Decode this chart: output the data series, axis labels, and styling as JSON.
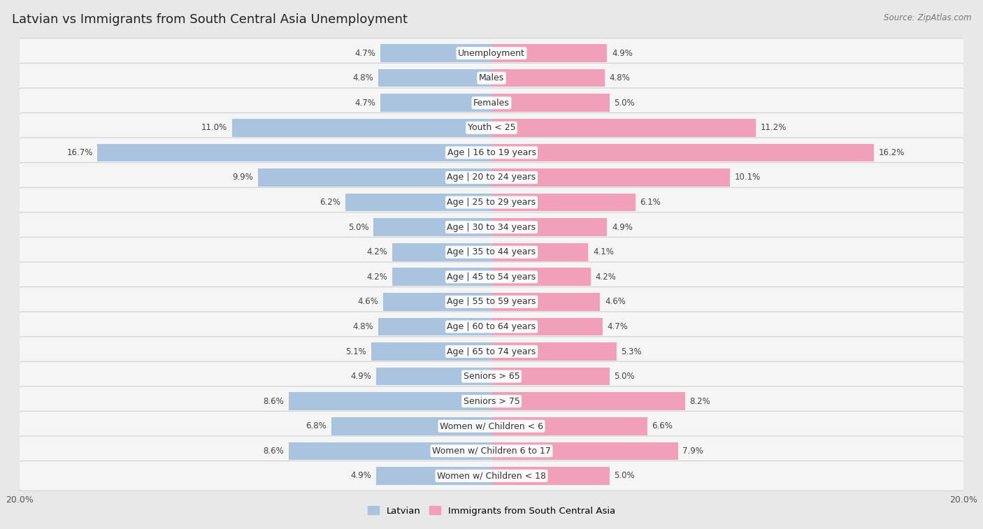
{
  "title": "Latvian vs Immigrants from South Central Asia Unemployment",
  "source": "Source: ZipAtlas.com",
  "categories": [
    "Unemployment",
    "Males",
    "Females",
    "Youth < 25",
    "Age | 16 to 19 years",
    "Age | 20 to 24 years",
    "Age | 25 to 29 years",
    "Age | 30 to 34 years",
    "Age | 35 to 44 years",
    "Age | 45 to 54 years",
    "Age | 55 to 59 years",
    "Age | 60 to 64 years",
    "Age | 65 to 74 years",
    "Seniors > 65",
    "Seniors > 75",
    "Women w/ Children < 6",
    "Women w/ Children 6 to 17",
    "Women w/ Children < 18"
  ],
  "latvian_values": [
    4.7,
    4.8,
    4.7,
    11.0,
    16.7,
    9.9,
    6.2,
    5.0,
    4.2,
    4.2,
    4.6,
    4.8,
    5.1,
    4.9,
    8.6,
    6.8,
    8.6,
    4.9
  ],
  "immigrant_values": [
    4.9,
    4.8,
    5.0,
    11.2,
    16.2,
    10.1,
    6.1,
    4.9,
    4.1,
    4.2,
    4.6,
    4.7,
    5.3,
    5.0,
    8.2,
    6.6,
    7.9,
    5.0
  ],
  "latvian_color": "#aac4e0",
  "immigrant_color": "#f0a0b8",
  "bar_height": 0.72,
  "xlim": 20.0,
  "background_color": "#e8e8e8",
  "row_bg_color": "#f5f5f5",
  "title_fontsize": 13,
  "label_fontsize": 9,
  "value_fontsize": 8.5,
  "legend_fontsize": 9.5
}
